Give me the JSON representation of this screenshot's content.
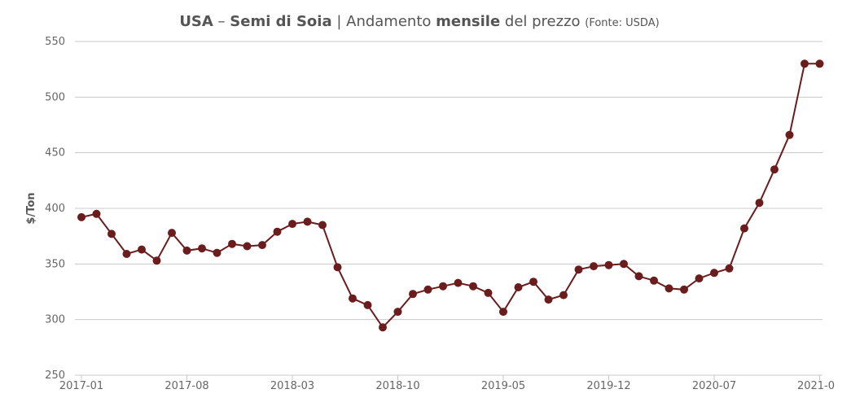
{
  "title": {
    "country": "USA",
    "sep1": " – ",
    "product": "Semi di Soia",
    "sep2": " | Andamento ",
    "emph": "mensile",
    "rest": " del prezzo ",
    "source": "(Fonte: USDA)"
  },
  "chart_data": {
    "type": "line",
    "ylabel": "$/Ton",
    "ylim": [
      250,
      550
    ],
    "yticks": [
      250,
      300,
      350,
      400,
      450,
      500,
      550
    ],
    "xticks": [
      "2017-01",
      "2017-08",
      "2018-03",
      "2018-10",
      "2019-05",
      "2019-12",
      "2020-07",
      "2021-0"
    ],
    "grid": true,
    "series": [
      {
        "color": "#6b1c1c",
        "x": [
          "2017-01",
          "2017-02",
          "2017-03",
          "2017-04",
          "2017-05",
          "2017-06",
          "2017-07",
          "2017-08",
          "2017-09",
          "2017-10",
          "2017-11",
          "2017-12",
          "2018-01",
          "2018-02",
          "2018-03",
          "2018-04",
          "2018-05",
          "2018-06",
          "2018-07",
          "2018-08",
          "2018-09",
          "2018-10",
          "2018-11",
          "2018-12",
          "2019-01",
          "2019-02",
          "2019-03",
          "2019-04",
          "2019-05",
          "2019-06",
          "2019-07",
          "2019-08",
          "2019-09",
          "2019-10",
          "2019-11",
          "2019-12",
          "2020-01",
          "2020-02",
          "2020-03",
          "2020-04",
          "2020-05",
          "2020-06",
          "2020-07",
          "2020-08",
          "2020-09",
          "2020-10",
          "2020-11",
          "2020-12",
          "2021-01",
          "2021-02"
        ],
        "values": [
          392,
          395,
          377,
          359,
          363,
          353,
          378,
          362,
          364,
          360,
          368,
          366,
          367,
          379,
          386,
          388,
          385,
          347,
          319,
          313,
          293,
          307,
          323,
          327,
          330,
          333,
          330,
          324,
          307,
          329,
          334,
          318,
          322,
          345,
          348,
          349,
          350,
          339,
          335,
          328,
          327,
          337,
          342,
          346,
          382,
          405,
          435,
          466,
          530,
          530
        ]
      }
    ]
  }
}
